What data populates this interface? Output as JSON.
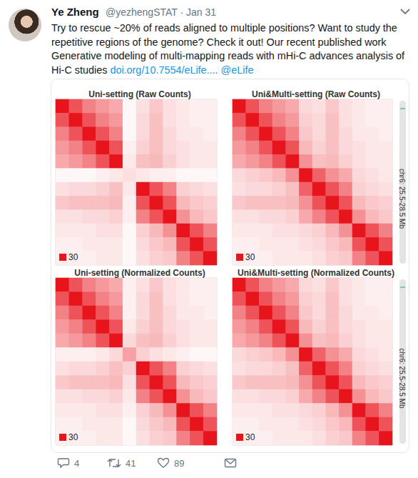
{
  "tweet": {
    "name": "Ye Zheng",
    "meta": "@yezhengSTAT · Jan 31",
    "text_lines": [
      [
        {
          "text": "Try to rescue ~20% of reads aligned to multiple positions? Want to study the"
        }
      ],
      [
        {
          "text": "repetitive regions of the genome? Check it out! Our recent published work"
        }
      ],
      [
        {
          "text": "Generative modeling of multi-mapping reads with mHi-C advances analysis of"
        }
      ],
      [
        {
          "text": "Hi-C studies "
        },
        {
          "text": "doi.org/10.7554/eLife....",
          "link": true
        },
        {
          "text": " @eLife",
          "link": true
        }
      ]
    ],
    "replies": 4,
    "retweets": 41,
    "likes": 89
  },
  "chart_data": [
    {
      "type": "heatmap",
      "title": "Uni-setting (Raw Counts)",
      "color": "#e8141c",
      "tick_labels": false,
      "color_range": [
        0,
        30
      ],
      "color_ticks": [
        30
      ],
      "cells": [
        [
          30,
          22,
          16,
          13,
          11,
          1,
          4,
          7,
          4,
          3,
          2,
          2
        ],
        [
          22,
          30,
          22,
          16,
          13,
          1,
          5,
          8,
          4,
          3,
          2,
          2
        ],
        [
          16,
          22,
          30,
          22,
          16,
          1,
          5,
          8,
          5,
          3,
          3,
          2
        ],
        [
          13,
          16,
          22,
          30,
          22,
          2,
          6,
          8,
          5,
          4,
          3,
          3
        ],
        [
          11,
          13,
          16,
          22,
          30,
          3,
          8,
          9,
          6,
          4,
          3,
          3
        ],
        [
          1,
          1,
          1,
          2,
          3,
          4,
          3,
          2,
          2,
          1,
          1,
          1
        ],
        [
          4,
          5,
          5,
          6,
          8,
          3,
          30,
          22,
          16,
          6,
          5,
          4
        ],
        [
          7,
          8,
          8,
          8,
          9,
          2,
          22,
          30,
          22,
          9,
          7,
          6
        ],
        [
          4,
          4,
          5,
          5,
          6,
          2,
          16,
          22,
          30,
          14,
          9,
          7
        ],
        [
          3,
          3,
          3,
          4,
          4,
          1,
          6,
          9,
          14,
          30,
          22,
          16
        ],
        [
          2,
          2,
          3,
          3,
          3,
          1,
          5,
          7,
          9,
          22,
          30,
          22
        ],
        [
          2,
          2,
          2,
          3,
          3,
          1,
          4,
          6,
          7,
          16,
          22,
          30
        ]
      ]
    },
    {
      "type": "heatmap",
      "title": "Uni&Multi-setting (Raw Counts)",
      "color": "#e8141c",
      "tick_labels": false,
      "color_range": [
        0,
        30
      ],
      "color_ticks": [
        30
      ],
      "side_label": "chr6: 25.5-28.5 Mb",
      "cells": [
        [
          30,
          22,
          16,
          13,
          11,
          5,
          4,
          7,
          4,
          3,
          2,
          2
        ],
        [
          22,
          30,
          22,
          16,
          13,
          6,
          5,
          8,
          4,
          3,
          2,
          2
        ],
        [
          16,
          22,
          30,
          22,
          16,
          7,
          5,
          8,
          5,
          3,
          3,
          2
        ],
        [
          13,
          16,
          22,
          30,
          22,
          9,
          6,
          8,
          5,
          4,
          3,
          3
        ],
        [
          11,
          13,
          16,
          22,
          30,
          14,
          8,
          9,
          6,
          4,
          3,
          3
        ],
        [
          5,
          6,
          7,
          9,
          14,
          30,
          20,
          14,
          11,
          5,
          4,
          3
        ],
        [
          4,
          5,
          5,
          6,
          8,
          20,
          30,
          22,
          16,
          6,
          5,
          4
        ],
        [
          7,
          8,
          8,
          8,
          9,
          14,
          22,
          30,
          22,
          9,
          7,
          6
        ],
        [
          4,
          4,
          5,
          5,
          6,
          11,
          16,
          22,
          30,
          14,
          9,
          7
        ],
        [
          3,
          3,
          3,
          4,
          4,
          5,
          6,
          9,
          14,
          30,
          22,
          16
        ],
        [
          2,
          2,
          3,
          3,
          3,
          4,
          5,
          7,
          9,
          22,
          30,
          22
        ],
        [
          2,
          2,
          2,
          3,
          3,
          3,
          4,
          6,
          7,
          16,
          22,
          30
        ]
      ]
    },
    {
      "type": "heatmap",
      "title": "Uni-setting (Normalized Counts)",
      "color": "#e8141c",
      "tick_labels": false,
      "color_range": [
        0,
        30
      ],
      "color_ticks": [
        30
      ],
      "cells": [
        [
          30,
          22,
          16,
          13,
          11,
          2,
          4,
          7,
          4,
          3,
          2,
          2
        ],
        [
          22,
          30,
          22,
          16,
          13,
          2,
          5,
          8,
          4,
          3,
          2,
          2
        ],
        [
          16,
          22,
          30,
          22,
          16,
          2,
          5,
          8,
          5,
          3,
          3,
          2
        ],
        [
          13,
          16,
          22,
          30,
          22,
          3,
          6,
          8,
          5,
          4,
          3,
          3
        ],
        [
          11,
          13,
          16,
          22,
          30,
          5,
          8,
          9,
          6,
          4,
          3,
          3
        ],
        [
          2,
          2,
          2,
          3,
          5,
          12,
          6,
          4,
          3,
          2,
          1,
          1
        ],
        [
          4,
          5,
          5,
          6,
          8,
          6,
          30,
          22,
          16,
          6,
          5,
          4
        ],
        [
          7,
          8,
          8,
          8,
          9,
          4,
          22,
          30,
          22,
          9,
          7,
          6
        ],
        [
          4,
          4,
          5,
          5,
          6,
          3,
          16,
          22,
          30,
          14,
          9,
          7
        ],
        [
          3,
          3,
          3,
          4,
          4,
          2,
          6,
          9,
          14,
          30,
          22,
          16
        ],
        [
          2,
          2,
          3,
          3,
          3,
          1,
          5,
          7,
          9,
          22,
          30,
          22
        ],
        [
          2,
          2,
          2,
          3,
          3,
          1,
          4,
          6,
          7,
          16,
          22,
          30
        ]
      ]
    },
    {
      "type": "heatmap",
      "title": "Uni&Multi-setting (Normalized Counts)",
      "color": "#e8141c",
      "tick_labels": false,
      "color_range": [
        0,
        30
      ],
      "color_ticks": [
        30
      ],
      "side_label": "chr6: 25.5-28.5 Mb",
      "cells": [
        [
          30,
          22,
          16,
          13,
          11,
          5,
          4,
          7,
          4,
          3,
          2,
          2
        ],
        [
          22,
          30,
          22,
          16,
          13,
          6,
          5,
          8,
          4,
          3,
          2,
          2
        ],
        [
          16,
          22,
          30,
          22,
          16,
          7,
          5,
          8,
          5,
          3,
          3,
          2
        ],
        [
          13,
          16,
          22,
          30,
          22,
          9,
          6,
          8,
          5,
          4,
          3,
          3
        ],
        [
          11,
          13,
          16,
          22,
          30,
          14,
          8,
          9,
          6,
          4,
          3,
          3
        ],
        [
          5,
          6,
          7,
          9,
          14,
          30,
          20,
          14,
          11,
          5,
          4,
          3
        ],
        [
          4,
          5,
          5,
          6,
          8,
          20,
          30,
          22,
          16,
          6,
          5,
          4
        ],
        [
          7,
          8,
          8,
          8,
          9,
          14,
          22,
          30,
          22,
          9,
          7,
          6
        ],
        [
          4,
          4,
          5,
          5,
          6,
          11,
          16,
          22,
          30,
          14,
          9,
          7
        ],
        [
          3,
          3,
          3,
          4,
          4,
          5,
          6,
          9,
          14,
          30,
          22,
          16
        ],
        [
          2,
          2,
          3,
          3,
          3,
          4,
          5,
          7,
          9,
          22,
          30,
          22
        ],
        [
          2,
          2,
          2,
          3,
          3,
          3,
          4,
          6,
          7,
          16,
          22,
          30
        ]
      ]
    }
  ]
}
